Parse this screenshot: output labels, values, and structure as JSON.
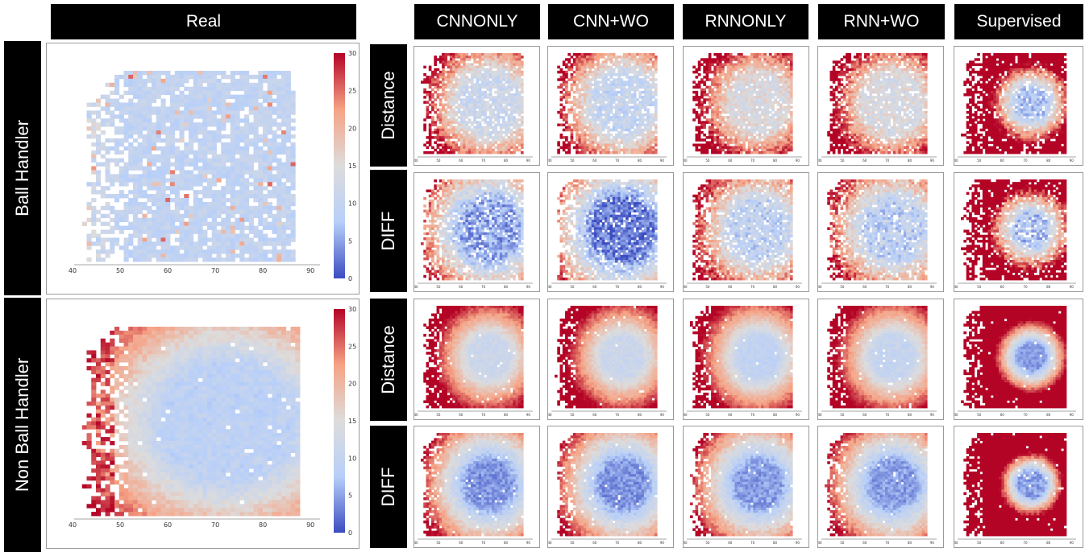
{
  "headers": {
    "real": "Real",
    "columns": [
      "CNNONLY",
      "CNN+WO",
      "RNNONLY",
      "RNN+WO",
      "Supervised"
    ]
  },
  "rows": {
    "left": [
      "Ball Handler",
      "Non Ball Handler"
    ],
    "right": [
      "Distance",
      "DIFF",
      "Distance",
      "DIFF"
    ]
  },
  "chart_data": [
    {
      "type": "heatmap",
      "panel": "Real / Ball Handler",
      "xticks": [
        40,
        50,
        60,
        70,
        80,
        90
      ],
      "xlim": [
        40,
        92
      ],
      "colorbar": {
        "min": 0,
        "max": 30,
        "ticks": [
          0,
          5,
          10,
          15,
          20,
          25,
          30
        ]
      },
      "colormap": [
        "#3b4cc0",
        "#b7cff9",
        "#dddcdc",
        "#f6a385",
        "#b40426"
      ],
      "pattern": "mostly low values (8-12) with sparse coverage and scattered mid values on left edge"
    },
    {
      "type": "heatmap",
      "panel": "Real / Non Ball Handler",
      "xticks": [
        40,
        50,
        60,
        70,
        80,
        90
      ],
      "xlim": [
        40,
        92
      ],
      "colorbar": {
        "min": 0,
        "max": 30,
        "ticks": [
          0,
          5,
          10,
          15,
          20,
          25,
          30
        ]
      },
      "colormap": [
        "#3b4cc0",
        "#b7cff9",
        "#dddcdc",
        "#f6a385",
        "#b40426"
      ],
      "pattern": "low center (~10) rising to high (25-30) at left edge"
    }
  ],
  "grid_panels": {
    "count_rows": 4,
    "count_cols": 5,
    "colormap": [
      "#3b4cc0",
      "#b7cff9",
      "#dddcdc",
      "#f6a385",
      "#b40426"
    ]
  }
}
